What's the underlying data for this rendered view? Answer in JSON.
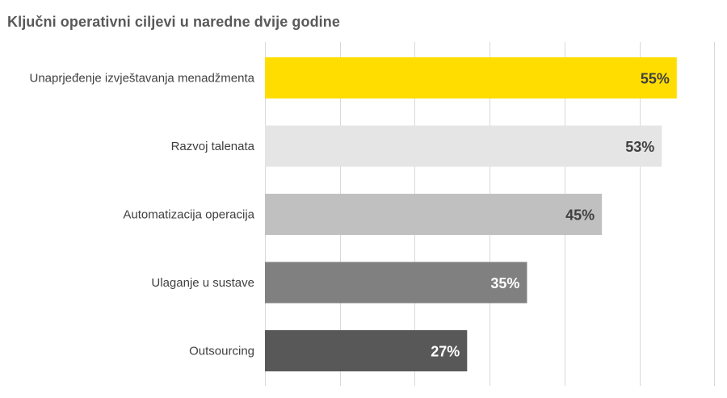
{
  "chart_data": {
    "type": "bar",
    "orientation": "horizontal",
    "title": "Ključni operativni ciljevi u naredne dvije godine",
    "xlabel": "",
    "ylabel": "",
    "xlim": [
      0,
      60
    ],
    "grid": true,
    "legend": "none",
    "categories": [
      "Unaprjeđenje izvještavanja menadžmenta",
      "Razvoj talenata",
      "Automatizacija operacija",
      "Ulaganje u sustave",
      "Outsourcing"
    ],
    "values": [
      55,
      53,
      45,
      35,
      27
    ],
    "data_labels": [
      "55%",
      "53%",
      "45%",
      "35%",
      "27%"
    ],
    "bar_colors": [
      "#FFDD00",
      "#E6E5E5",
      "#C0C0C0",
      "#808080",
      "#585858"
    ],
    "label_colors": [
      "#404040",
      "#404040",
      "#404040",
      "#FFFFFF",
      "#FFFFFF"
    ]
  }
}
